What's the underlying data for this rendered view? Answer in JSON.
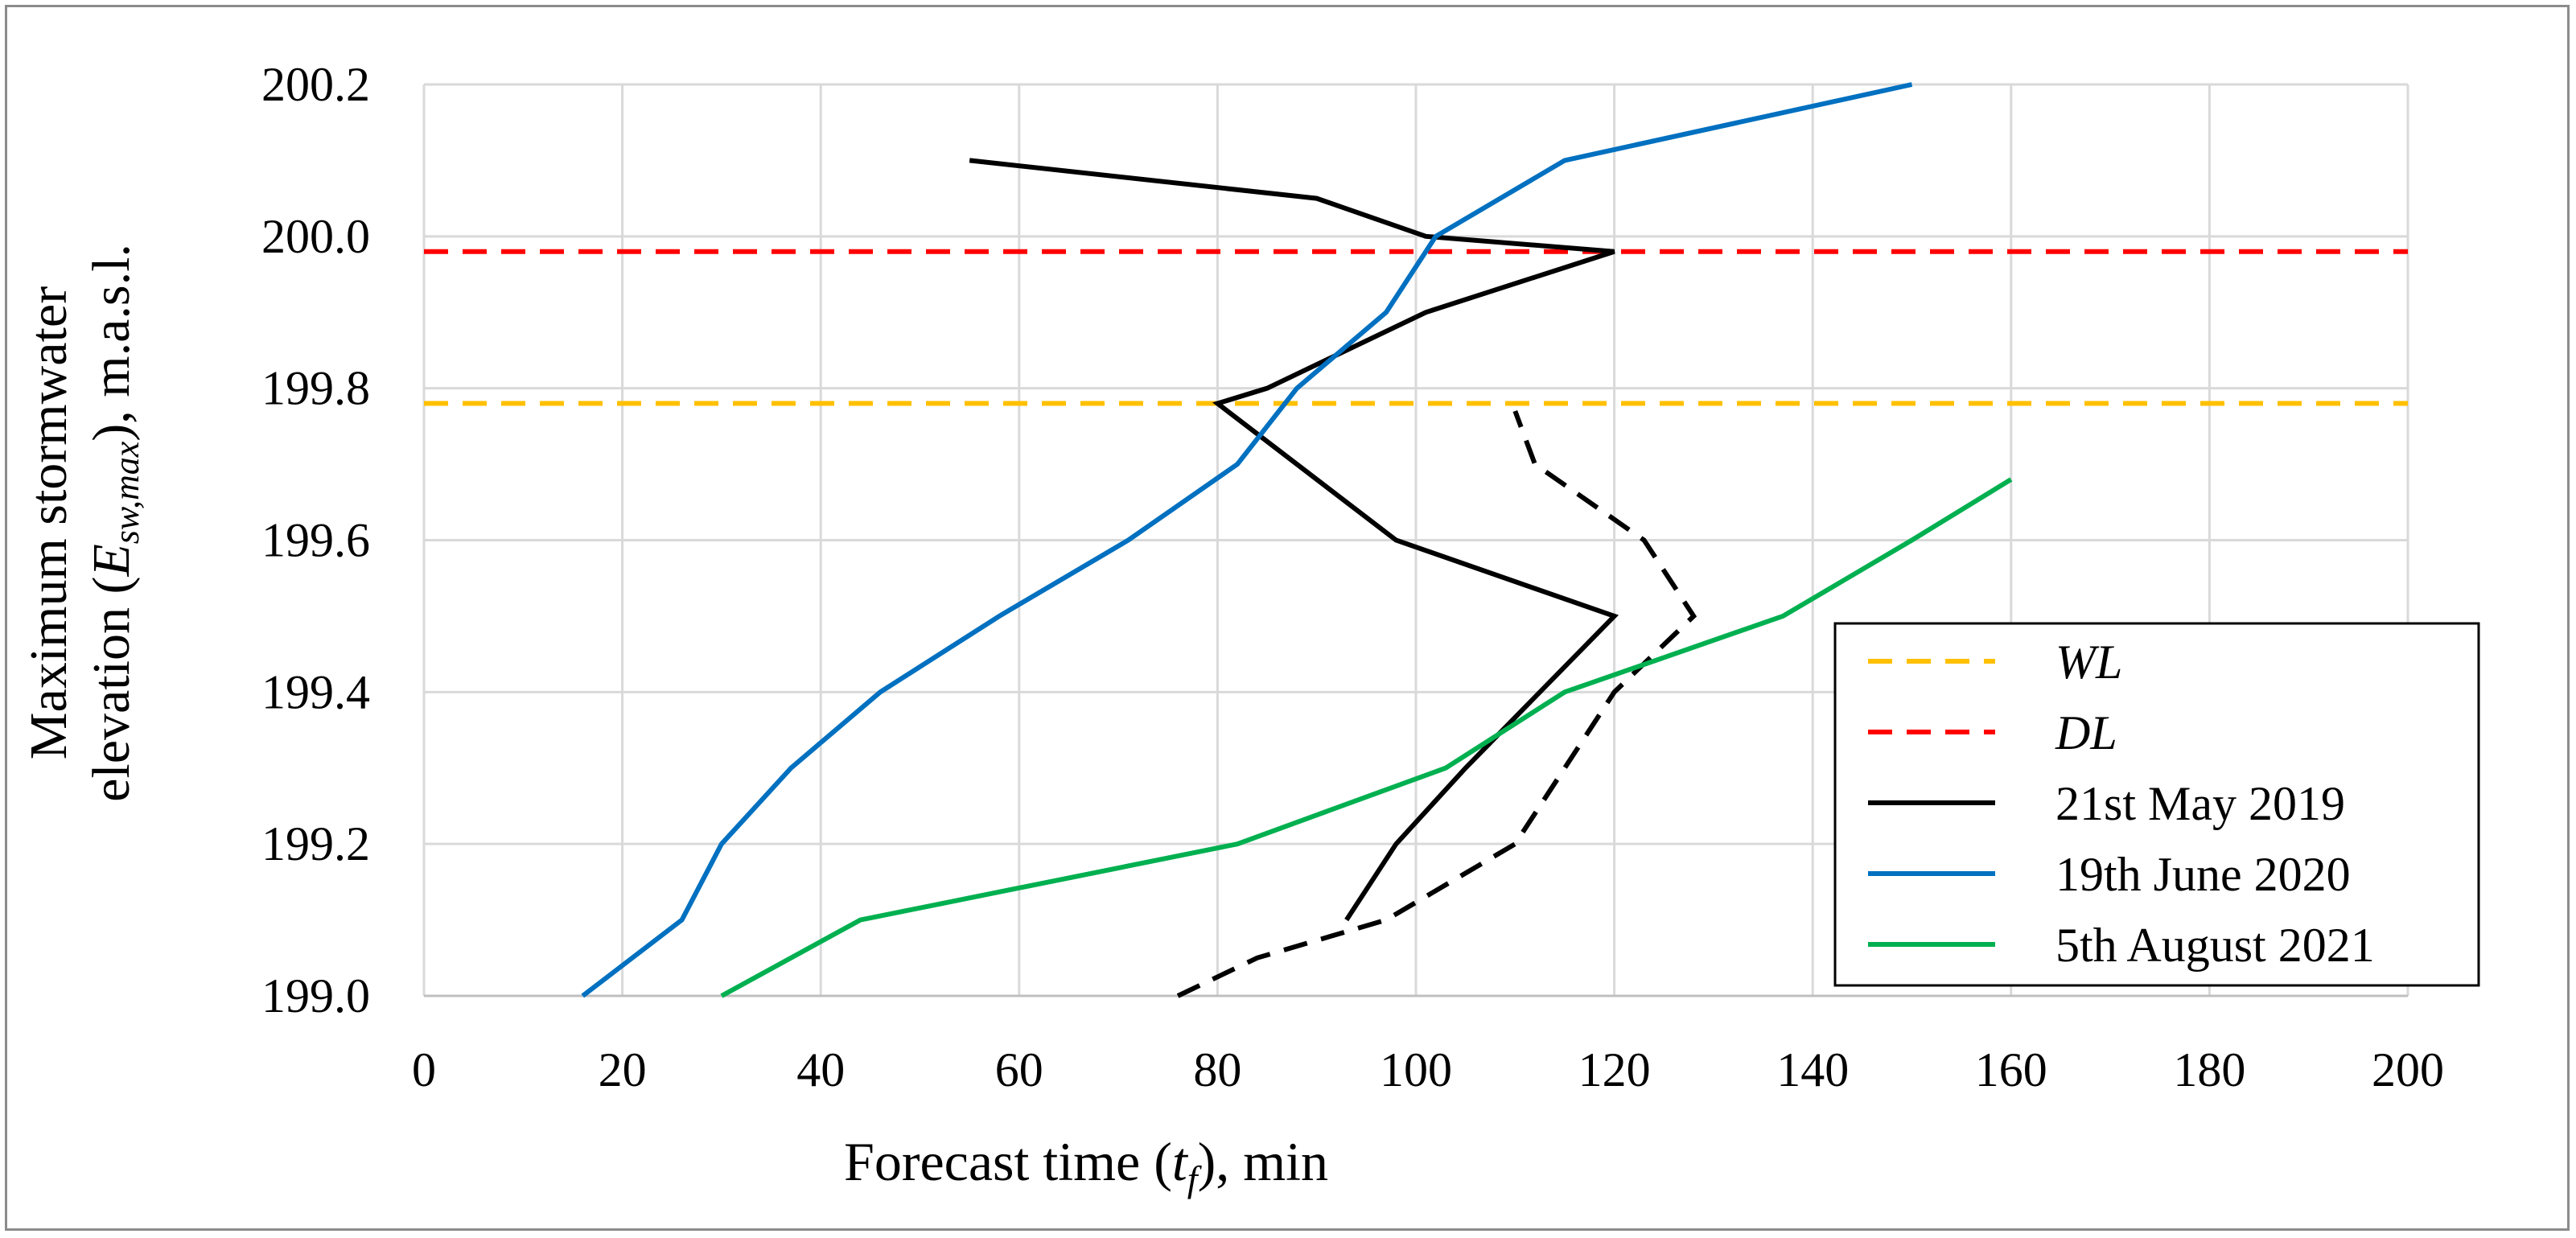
{
  "chart_data": {
    "type": "line",
    "title": "",
    "xlabel": {
      "pre": "Forecast time (",
      "sym": "t",
      "sub": "f",
      "post": "), min"
    },
    "ylabel": {
      "line1": "Maximum stormwater",
      "line2": {
        "pre": "elevation (",
        "sym": "E",
        "sub": "sw,max",
        "post": "), m.a.s.l."
      }
    },
    "xlim": [
      0,
      200
    ],
    "ylim": [
      199.0,
      200.2
    ],
    "xticks": [
      0,
      20,
      40,
      60,
      80,
      100,
      120,
      140,
      160,
      180,
      200
    ],
    "xtick_labels": [
      "0",
      "20",
      "40",
      "60",
      "80",
      "100",
      "120",
      "140",
      "160",
      "180",
      "200"
    ],
    "yticks": [
      199.0,
      199.2,
      199.4,
      199.6,
      199.8,
      200.0,
      200.2
    ],
    "ytick_labels": [
      "199.0",
      "199.2",
      "199.4",
      "199.6",
      "199.8",
      "200.0",
      "200.2"
    ],
    "grid": true,
    "legend_position": "bottom-right",
    "series": [
      {
        "name": "WL",
        "italic": true,
        "color": "#FFC000",
        "dash": true,
        "legend": true,
        "x": [
          0,
          200
        ],
        "y": [
          199.78,
          199.78
        ]
      },
      {
        "name": "DL",
        "italic": true,
        "color": "#FF0000",
        "dash": true,
        "legend": true,
        "x": [
          0,
          200
        ],
        "y": [
          199.98,
          199.98
        ]
      },
      {
        "name": "21st May 2019",
        "italic": false,
        "color": "#000000",
        "dash": false,
        "legend": true,
        "x": [
          55,
          90,
          101,
          120,
          101,
          85,
          80,
          98,
          120,
          105,
          98,
          93
        ],
        "y": [
          200.1,
          200.05,
          200.0,
          199.98,
          199.9,
          199.8,
          199.78,
          199.6,
          199.5,
          199.3,
          199.2,
          199.1
        ]
      },
      {
        "name": "21st May 2019 (dashed)",
        "italic": false,
        "color": "#000000",
        "dash": true,
        "legend": false,
        "x": [
          76,
          84,
          97,
          110,
          120,
          128,
          123,
          112,
          110
        ],
        "y": [
          199.0,
          199.05,
          199.1,
          199.2,
          199.4,
          199.5,
          199.6,
          199.7,
          199.77
        ]
      },
      {
        "name": "19th June 2020",
        "italic": false,
        "color": "#0070C0",
        "dash": false,
        "legend": true,
        "x": [
          16,
          26,
          30,
          37,
          46,
          58,
          71,
          82,
          88,
          97,
          102,
          115,
          150
        ],
        "y": [
          199.0,
          199.1,
          199.2,
          199.3,
          199.4,
          199.5,
          199.6,
          199.7,
          199.8,
          199.9,
          200.0,
          200.1,
          200.2
        ]
      },
      {
        "name": "5th August 2021",
        "italic": false,
        "color": "#00B050",
        "dash": false,
        "legend": true,
        "x": [
          30,
          44,
          82,
          103,
          115,
          137,
          150,
          160
        ],
        "y": [
          199.0,
          199.1,
          199.2,
          199.3,
          199.4,
          199.5,
          199.6,
          199.68
        ]
      }
    ]
  }
}
